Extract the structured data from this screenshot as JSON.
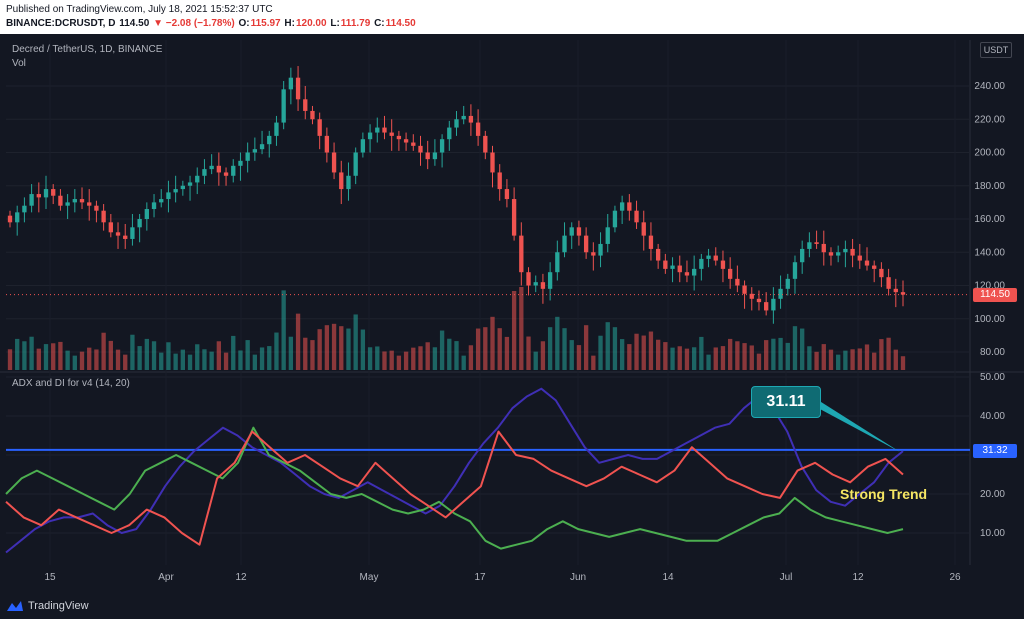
{
  "header": {
    "published": "Published on TradingView.com, July 18, 2021 15:52:37 UTC",
    "symbol": "BINANCE:DCRUSDT, D",
    "last": "114.50",
    "change": "▼ −2.08 (−1.78%)",
    "o_label": "O:",
    "o_val": "115.97",
    "h_label": "H:",
    "h_val": "120.00",
    "l_label": "L:",
    "l_val": "111.79",
    "c_label": "C:",
    "c_val": "114.50"
  },
  "legend": {
    "symbol_title": "Decred / TetherUS, 1D, BINANCE",
    "vol": "Vol",
    "adx_title": "ADX and DI for v4 (14, 20)",
    "currency": "USDT"
  },
  "tags": {
    "last_price": "114.50",
    "adx_level": "31.32"
  },
  "annotations": {
    "callout": "31.11",
    "strong_trend": "Strong Trend"
  },
  "brand": {
    "name": "TradingView"
  },
  "colors": {
    "up": "#26a69a",
    "down": "#ef5350",
    "adx": "#3f2fb5",
    "di_plus": "#4caf50",
    "di_minus": "#f05350",
    "level": "#2962ff"
  },
  "chart_data": [
    {
      "type": "candlestick",
      "title": "Decred / TetherUS, 1D, BINANCE",
      "ylim": [
        70,
        255
      ],
      "y_ticks": [
        "240.00",
        "220.00",
        "200.00",
        "180.00",
        "160.00",
        "140.00",
        "120.00",
        "100.00",
        "80.00"
      ],
      "x_ticks": [
        "15",
        "Apr",
        "12",
        "May",
        "17",
        "Jun",
        "14",
        "Jul",
        "12",
        "26"
      ],
      "last_price": 114.5,
      "closes": [
        158,
        164,
        168,
        175,
        173,
        178,
        174,
        168,
        170,
        172,
        170,
        168,
        165,
        158,
        152,
        150,
        148,
        155,
        160,
        166,
        170,
        172,
        176,
        178,
        180,
        182,
        186,
        190,
        192,
        188,
        186,
        192,
        195,
        200,
        202,
        205,
        210,
        218,
        238,
        245,
        232,
        225,
        220,
        210,
        200,
        188,
        178,
        186,
        200,
        208,
        212,
        215,
        212,
        210,
        208,
        206,
        204,
        200,
        196,
        200,
        208,
        215,
        220,
        222,
        218,
        210,
        200,
        188,
        178,
        172,
        150,
        128,
        120,
        122,
        118,
        128,
        140,
        150,
        155,
        150,
        140,
        138,
        145,
        155,
        165,
        170,
        165,
        158,
        150,
        142,
        135,
        130,
        132,
        128,
        126,
        130,
        136,
        138,
        135,
        130,
        124,
        120,
        115,
        112,
        110,
        105,
        112,
        118,
        124,
        134,
        142,
        146,
        145,
        140,
        138,
        140,
        142,
        138,
        135,
        132,
        130,
        125,
        118,
        116,
        114.5
      ],
      "volume_max_pct": 100
    },
    {
      "type": "line",
      "title": "ADX and DI for v4 (14, 20)",
      "ylim": [
        0,
        50
      ],
      "y_ticks": [
        "50.00",
        "40.00",
        "30.00",
        "20.00",
        "10.00"
      ],
      "level": 31.32,
      "series": [
        {
          "values": [
            5,
            8,
            11,
            13,
            14,
            14,
            15,
            12,
            10,
            11,
            16,
            22,
            27,
            31,
            34,
            37,
            35,
            32,
            30,
            28,
            25,
            22,
            20,
            19,
            21,
            23,
            21,
            19,
            17,
            15,
            17,
            22,
            28,
            33,
            37,
            42,
            45,
            47,
            44,
            38,
            32,
            28,
            29,
            30,
            29,
            29,
            31,
            33,
            35,
            37,
            38,
            42,
            45,
            42,
            36,
            27,
            21,
            18,
            17,
            20,
            23,
            28,
            31
          ]
        },
        {
          "values": [
            20,
            24,
            26,
            24,
            22,
            20,
            18,
            16,
            20,
            26,
            28,
            30,
            28,
            26,
            24,
            28,
            37,
            30,
            28,
            26,
            23,
            20,
            19,
            20,
            18,
            16,
            15,
            16,
            18,
            15,
            13,
            8,
            6,
            7,
            8,
            11,
            13,
            11,
            10,
            9,
            10,
            11,
            10,
            9,
            8,
            8,
            8,
            10,
            12,
            14,
            15,
            19,
            16,
            14,
            13,
            12,
            11,
            10,
            11
          ]
        },
        {
          "values": [
            18,
            14,
            12,
            16,
            14,
            12,
            10,
            12,
            16,
            14,
            10,
            7,
            24,
            28,
            36,
            32,
            28,
            30,
            27,
            24,
            22,
            28,
            24,
            20,
            17,
            14,
            18,
            22,
            36,
            30,
            29,
            26,
            24,
            22,
            24,
            27,
            25,
            23,
            26,
            32,
            28,
            24,
            22,
            20,
            19,
            26,
            28,
            25,
            23,
            27,
            29,
            25
          ]
        }
      ]
    }
  ]
}
